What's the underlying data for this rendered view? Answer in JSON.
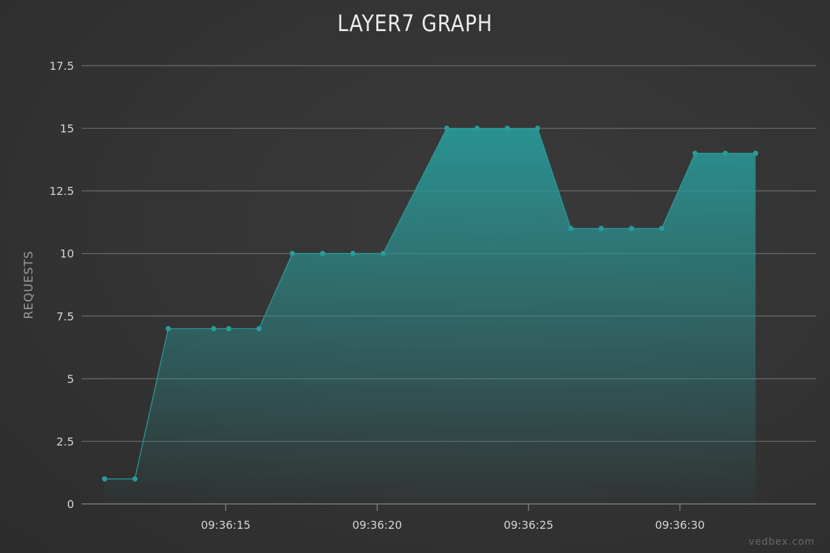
{
  "chart_data": {
    "type": "area",
    "title": "LAYER7 GRAPH",
    "xlabel": "",
    "ylabel": "REQUESTS",
    "ylim": [
      0,
      17.5
    ],
    "yticks": [
      0,
      2.5,
      5,
      7.5,
      10,
      12.5,
      15,
      17.5
    ],
    "ytick_labels": [
      "0",
      "2.5",
      "5",
      "7.5",
      "10",
      "12.5",
      "15",
      "17.5"
    ],
    "xlim": [
      "09:36:10.24",
      "09:36:34.50"
    ],
    "xticks": [
      "09:36:15",
      "09:36:20",
      "09:36:25",
      "09:36:30"
    ],
    "xtick_labels": [
      "09:36:15",
      "09:36:20",
      "09:36:25",
      "09:36:30"
    ],
    "grid": true,
    "colors": {
      "line": "#2a9a9a",
      "fill": "#2a9696"
    },
    "series": [
      {
        "x": [
          "09:36:11.0",
          "09:36:12.0",
          "09:36:13.1",
          "09:36:14.6",
          "09:36:15.1",
          "09:36:16.1",
          "09:36:17.2",
          "09:36:18.2",
          "09:36:19.2",
          "09:36:20.2",
          "09:36:22.3",
          "09:36:23.3",
          "09:36:24.3",
          "09:36:25.3",
          "09:36:26.4",
          "09:36:27.4",
          "09:36:28.4",
          "09:36:29.4",
          "09:36:30.5",
          "09:36:31.5",
          "09:36:32.5"
        ],
        "values": [
          1,
          1,
          7,
          7,
          7,
          7,
          10,
          10,
          10,
          10,
          15,
          15,
          15,
          15,
          11,
          11,
          11,
          11,
          14,
          14,
          14
        ]
      }
    ]
  },
  "watermark": "vedbex.com"
}
